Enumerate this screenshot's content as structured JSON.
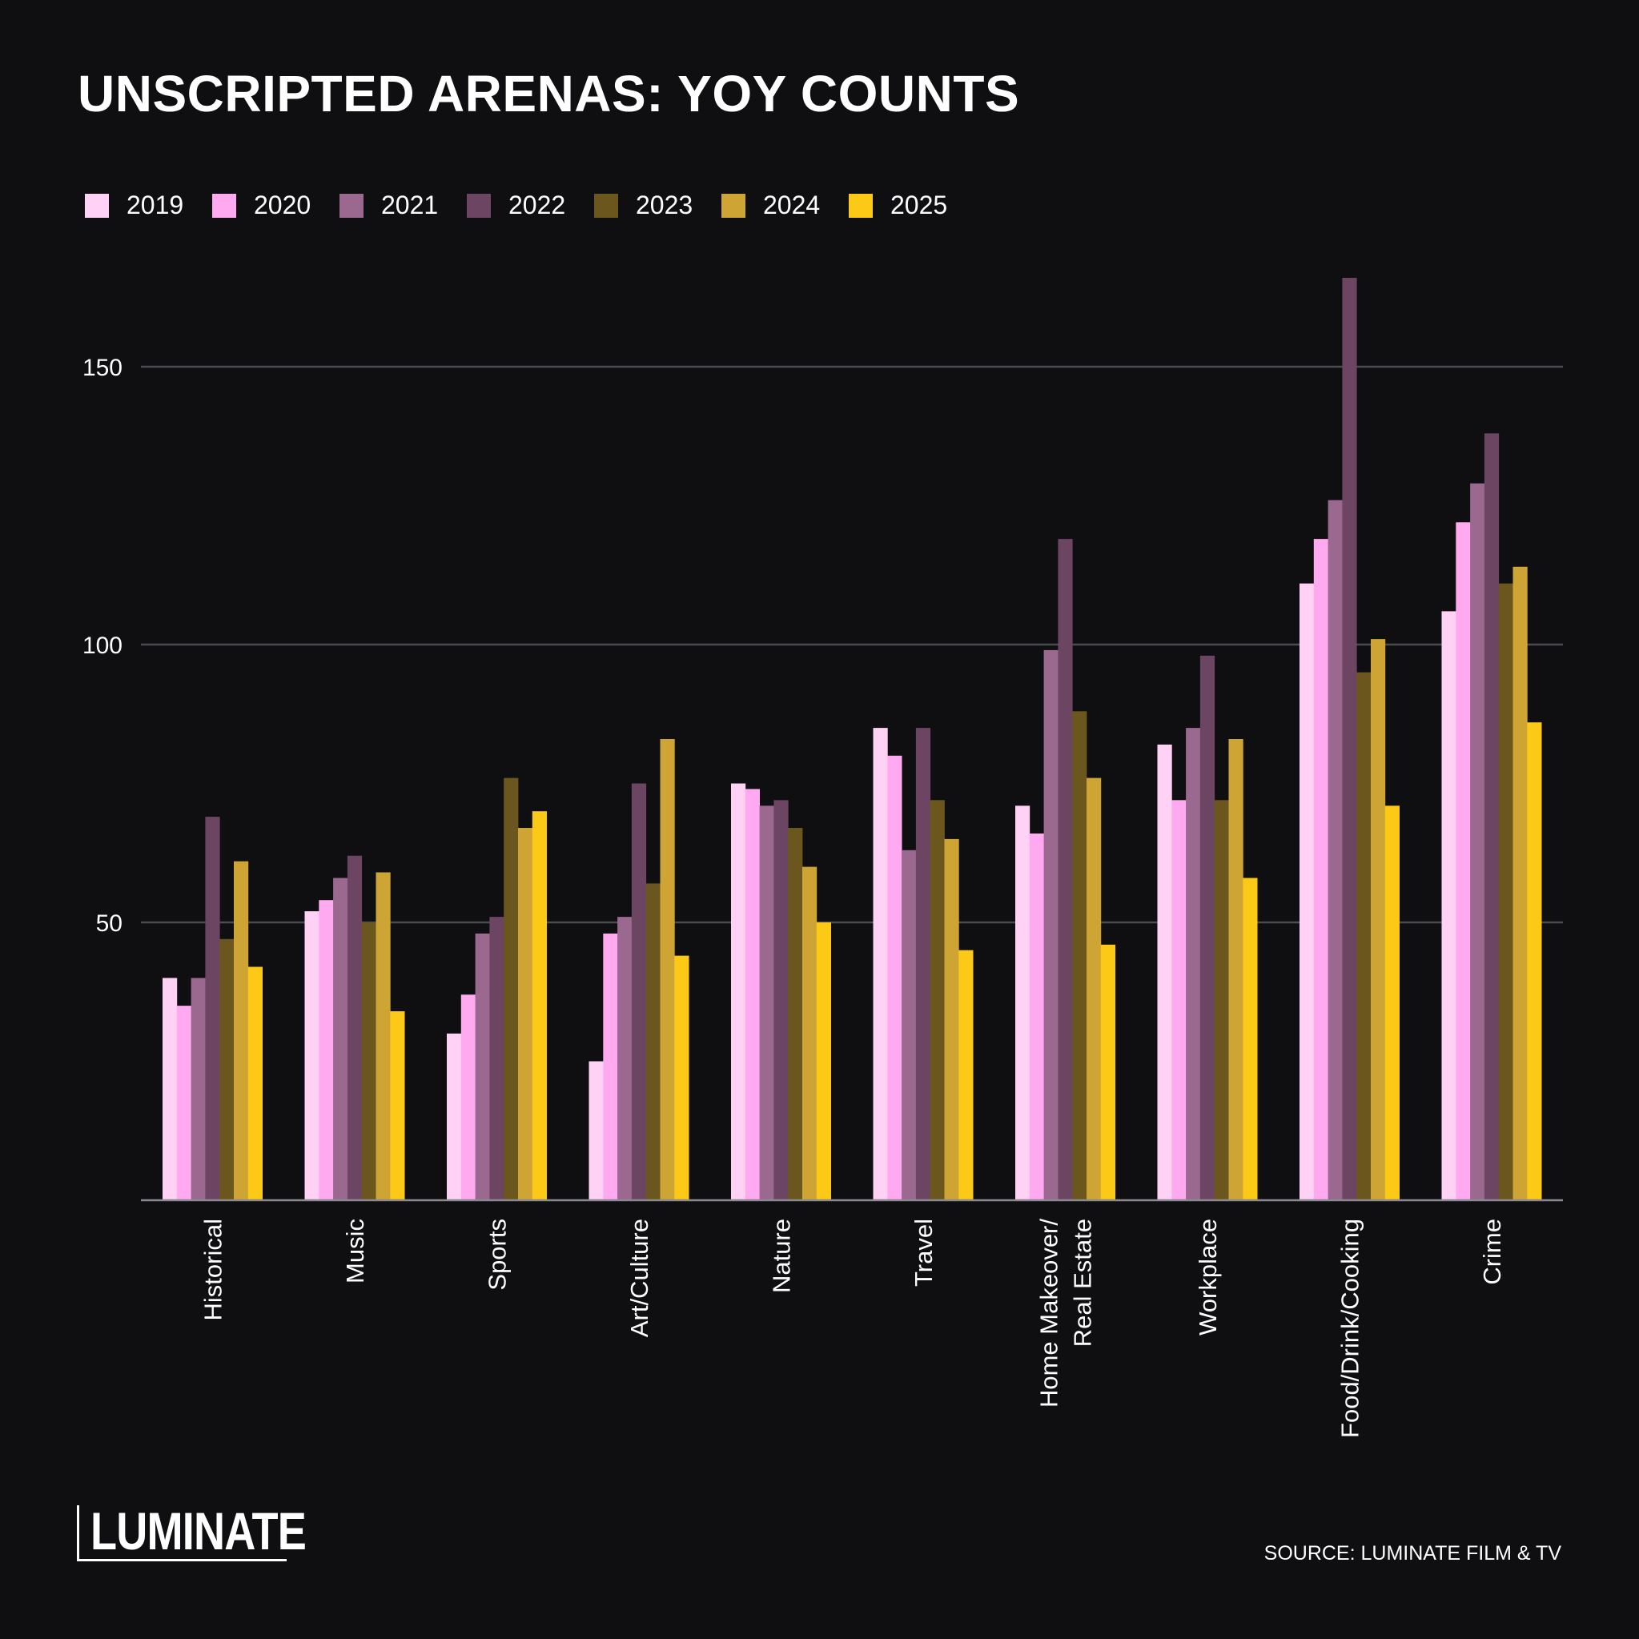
{
  "title": "UNSCRIPTED ARENAS: YOY COUNTS",
  "source": "SOURCE: LUMINATE FILM & TV",
  "logo_text": "LUMINATE",
  "chart_data": {
    "type": "bar",
    "title": "UNSCRIPTED ARENAS: YOY COUNTS",
    "xlabel": "",
    "ylabel": "",
    "ylim": [
      0,
      170
    ],
    "yticks": [
      50,
      100,
      150
    ],
    "grid": true,
    "legend_position": "top-left",
    "categories": [
      [
        "Historical"
      ],
      [
        "Music"
      ],
      [
        "Sports"
      ],
      [
        "Art/Culture"
      ],
      [
        "Nature"
      ],
      [
        "Travel"
      ],
      [
        "Home Makeover/",
        "Real Estate"
      ],
      [
        "Workplace"
      ],
      [
        "Food/Drink/Cooking"
      ],
      [
        "Crime"
      ]
    ],
    "series": [
      {
        "name": "2019",
        "color": "#ffd1f5",
        "values": [
          40,
          52,
          30,
          25,
          75,
          85,
          71,
          82,
          111,
          106
        ]
      },
      {
        "name": "2020",
        "color": "#ffaaf0",
        "values": [
          35,
          54,
          37,
          48,
          74,
          80,
          66,
          72,
          119,
          122
        ]
      },
      {
        "name": "2021",
        "color": "#9b6890",
        "values": [
          40,
          58,
          48,
          51,
          71,
          63,
          99,
          85,
          126,
          129
        ]
      },
      {
        "name": "2022",
        "color": "#6c4563",
        "values": [
          69,
          62,
          51,
          75,
          72,
          85,
          119,
          98,
          166,
          138
        ]
      },
      {
        "name": "2023",
        "color": "#6b561d",
        "values": [
          47,
          50,
          76,
          57,
          67,
          72,
          88,
          72,
          95,
          111
        ]
      },
      {
        "name": "2024",
        "color": "#cea534",
        "values": [
          61,
          59,
          67,
          83,
          60,
          65,
          76,
          83,
          101,
          114
        ]
      },
      {
        "name": "2025",
        "color": "#fdc917",
        "values": [
          42,
          34,
          70,
          44,
          50,
          45,
          46,
          58,
          71,
          86
        ]
      }
    ]
  }
}
